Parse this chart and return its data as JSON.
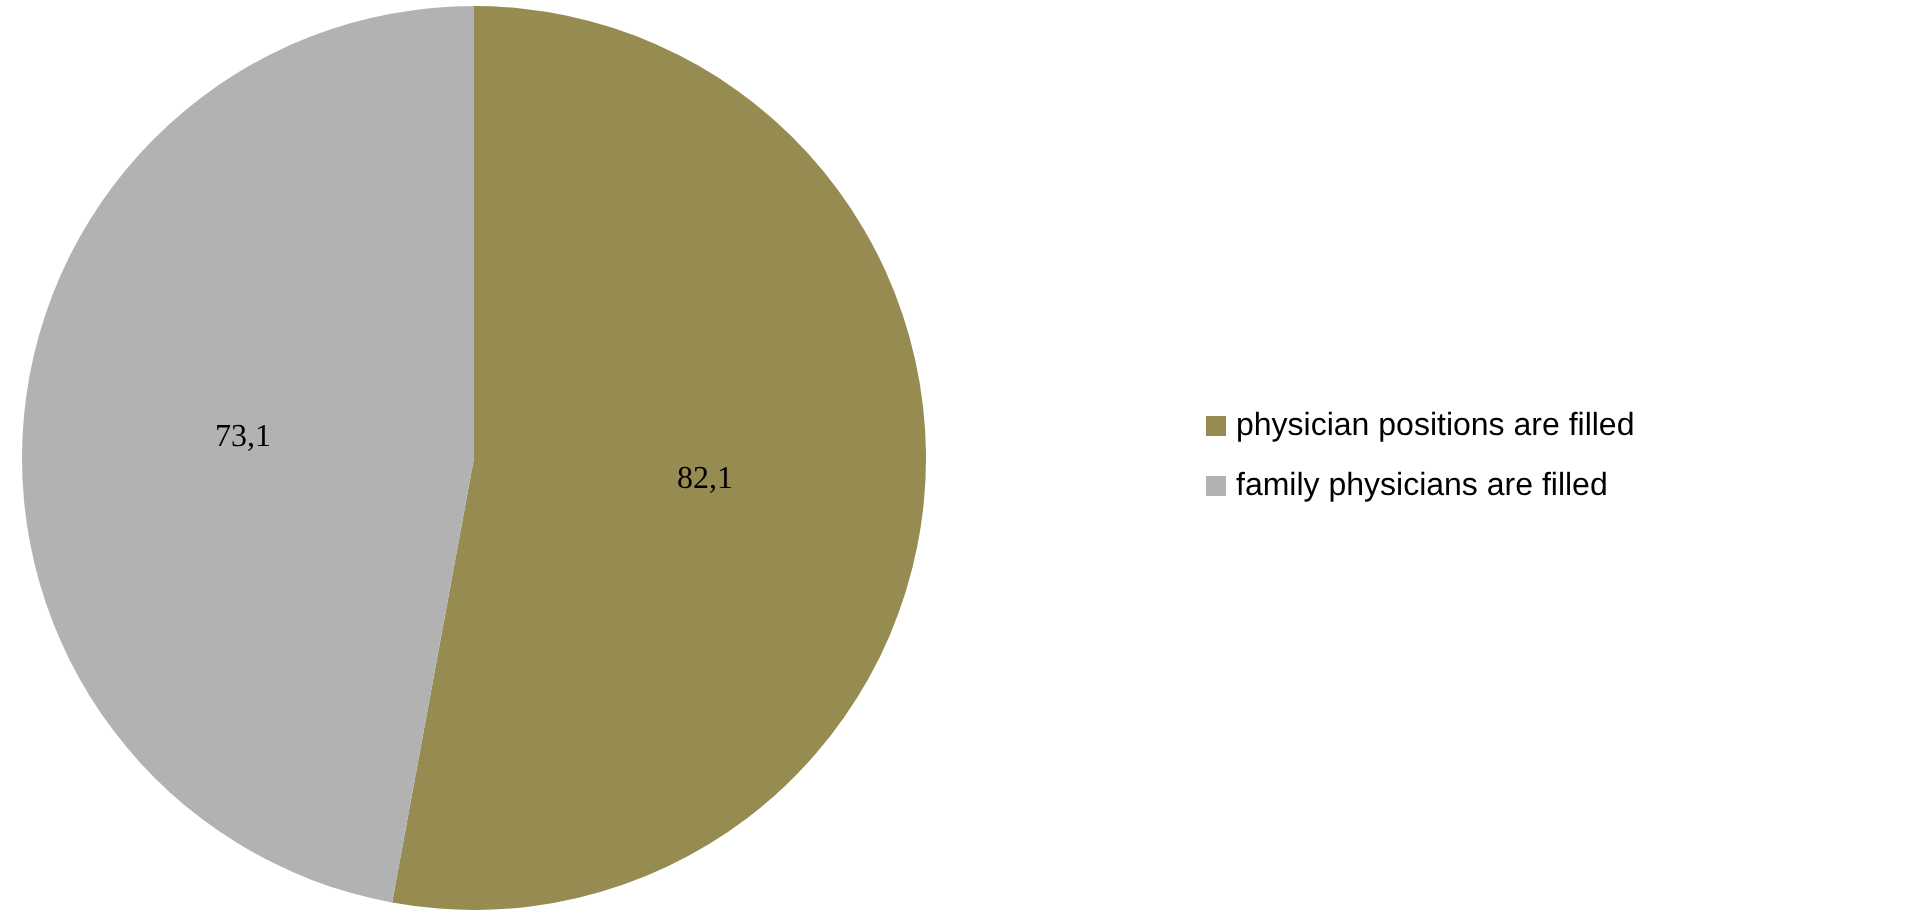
{
  "chart_data": {
    "type": "pie",
    "categories": [
      "physician positions are filled",
      "family physicians are filled"
    ],
    "values": [
      82.1,
      73.1
    ],
    "value_labels": [
      "82,1",
      "73,1"
    ],
    "colors": [
      "#968c52",
      "#b2b2b2"
    ],
    "legend": "right"
  }
}
